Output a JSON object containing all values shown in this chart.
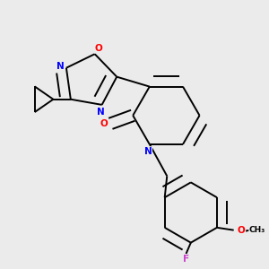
{
  "bg_color": "#ebebeb",
  "bond_color": "#000000",
  "line_width": 1.4,
  "atom_colors": {
    "N": "#0000ff",
    "O": "#ff0000",
    "F": "#cc44cc",
    "O_methoxy": "#ff0000"
  },
  "dbo": 0.018
}
